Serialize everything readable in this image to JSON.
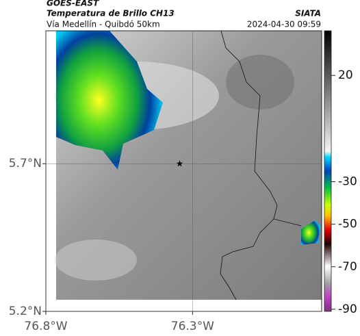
{
  "header": {
    "satellite": "GOES-EAST",
    "product": "Temperatura de Brillo CH13",
    "region": "Vía Medellín - Quibdó 50km",
    "source": "SIATA",
    "datetime": "2024-04-30 09:59"
  },
  "map": {
    "xlim": [
      -76.8,
      -75.86
    ],
    "ylim": [
      5.2,
      6.15
    ],
    "xticks": [
      {
        "value": -76.8,
        "label": "76.8°W"
      },
      {
        "value": -76.3,
        "label": "76.3°W"
      }
    ],
    "yticks": [
      {
        "value": 5.2,
        "label": "5.2°N"
      },
      {
        "value": 5.7,
        "label": "5.7°N"
      }
    ],
    "grid": true,
    "marker": {
      "lon": -76.344,
      "lat": 5.7
    }
  },
  "colorbar": {
    "lim": [
      41,
      -91
    ],
    "ticks": [
      20,
      -30,
      -50,
      -70,
      -90
    ]
  }
}
